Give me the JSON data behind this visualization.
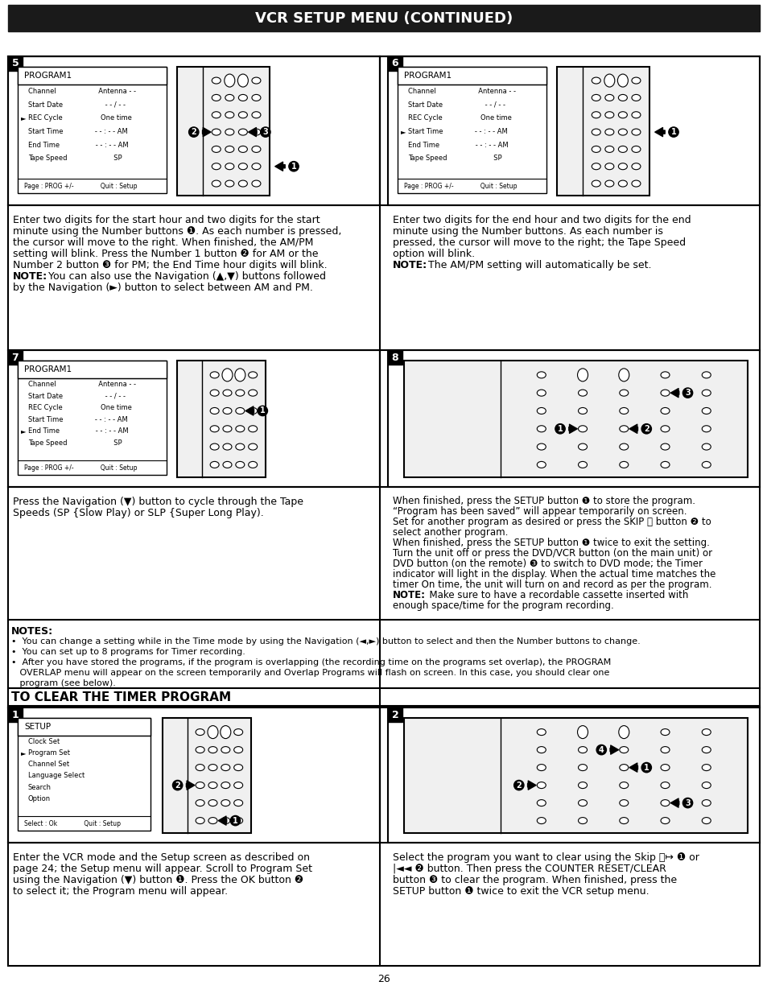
{
  "title": "VCR SETUP MENU (CONTINUED)",
  "page_number": "26",
  "background": "#ffffff",
  "title_bg": "#1a1a1a",
  "title_color": "#ffffff",
  "border_color": "#000000",
  "program1_menu": [
    "PROGRAM1",
    "Channel                    Antenna - -",
    "Start Date                    - - / - -",
    "REC Cycle                  One time",
    "Start Time               - - : - - AM",
    "End Time                 - - : - - AM",
    "Tape Speed                      SP",
    "",
    "Page : PROG +/-              Quit : Setup"
  ],
  "program1_arrow_row": 3,
  "program1_menu2": [
    "PROGRAM1",
    "Channel                    Antenna - -",
    "Start Date                    - - / - -",
    "REC Cycle                  One time",
    "Start Time               - - : - - AM",
    "End Time                 - - : - - AM",
    "Tape Speed                      SP",
    "",
    "Page : PROG +/-              Quit : Setup"
  ],
  "program1_menu2_arrow_row": 4,
  "program1_menu3": [
    "PROGRAM1",
    "Channel                    Antenna - -",
    "Start Date                    - - / - -",
    "REC Cycle                  One time",
    "Start Time               - - : - - AM",
    "End Time                 - - : - - AM",
    "Tape Speed                      SP",
    "",
    "Page : PROG +/-              Quit : Setup"
  ],
  "program1_menu3_arrow_row": 5,
  "setup_menu": [
    "SETUP",
    "Clock Set",
    "Program Set",
    "Channel Set",
    "Language Select",
    "Search",
    "Option",
    "",
    "Select : Ok              Quit : Setup"
  ],
  "setup_menu_arrow_row": 2,
  "notes_header": "NOTES:",
  "notes_line1": "•  You can change a setting while in the Time mode by using the Navigation (◄,►) button to select and then the Number buttons to change.",
  "notes_line2": "•  You can set up to 8 programs for Timer recording.",
  "notes_line3": "•  After you have stored the programs, if the program is overlapping (the recording time on the programs set overlap), the PROGRAM",
  "notes_line3b": "   OVERLAP menu will appear on the screen temporarily and Overlap Programs will flash on screen. In this case, you should clear one",
  "notes_line3c": "   program (see below).",
  "clear_header": "TO CLEAR THE TIMER PROGRAM"
}
